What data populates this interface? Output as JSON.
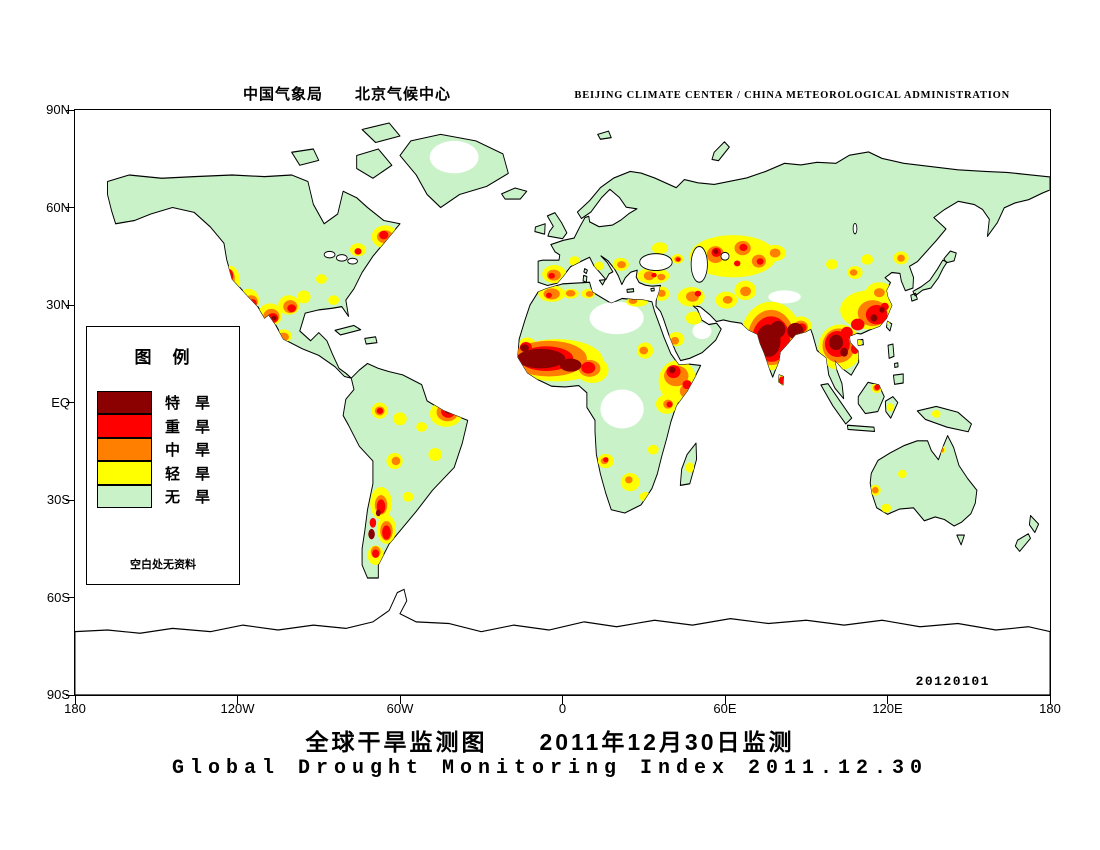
{
  "header": {
    "title_cn": "中国气象局　　北京气候中心",
    "title_en": "BEIJING CLIMATE CENTER / CHINA METEOROLOGICAL ADMINISTRATION"
  },
  "map": {
    "date_stamp": "20120101",
    "y_axis_labels": [
      "90N",
      "60N",
      "30N",
      "EQ",
      "30S",
      "60S",
      "90S"
    ],
    "x_axis_labels": [
      "180",
      "120W",
      "60W",
      "0",
      "60E",
      "120E",
      "180"
    ]
  },
  "legend": {
    "title": "图　例",
    "items": [
      {
        "label": "特　旱",
        "color": "#8B0000"
      },
      {
        "label": "重　旱",
        "color": "#FF0000"
      },
      {
        "label": "中　旱",
        "color": "#FF8000"
      },
      {
        "label": "轻　旱",
        "color": "#FFFF00"
      },
      {
        "label": "无　旱",
        "color": "#C9F2C9"
      }
    ],
    "note": "空白处无资料"
  },
  "footer": {
    "title_cn": "全球干旱监测图　　2011年12月30日监测",
    "title_en": "Global Drought Monitoring Index  2011.12.30"
  },
  "colors": {
    "extreme": "#8B0000",
    "severe": "#FF0000",
    "moderate": "#FF8000",
    "light": "#FFFF00",
    "none": "#C9F2C9",
    "no_data": "#FFFFFF",
    "coastline": "#000000"
  }
}
